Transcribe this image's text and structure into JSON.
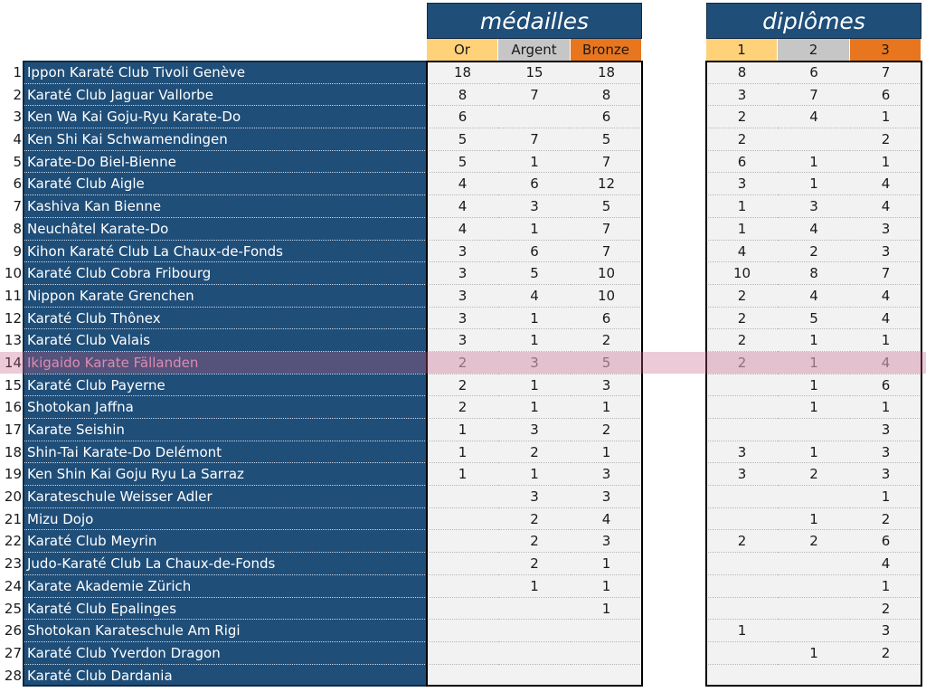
{
  "headers": {
    "medals_title": "médailles",
    "diplomas_title": "diplômes",
    "medal_cols": [
      "Or",
      "Argent",
      "Bronze"
    ],
    "diploma_cols": [
      "1",
      "2",
      "3"
    ]
  },
  "highlighted_rank": "14",
  "colors": {
    "navy": "#1f4e79",
    "gold": "#ffd27a",
    "silver": "#c6c6c6",
    "bronze": "#e8761e",
    "highlight": "#c85a82"
  },
  "rows": [
    {
      "rank": "1",
      "club": "Ippon Karaté Club Tivoli Genève",
      "or": "18",
      "argent": "15",
      "bronze": "18",
      "d1": "8",
      "d2": "6",
      "d3": "7"
    },
    {
      "rank": "2",
      "club": "Karaté Club Jaguar Vallorbe",
      "or": "8",
      "argent": "7",
      "bronze": "8",
      "d1": "3",
      "d2": "7",
      "d3": "6"
    },
    {
      "rank": "3",
      "club": "Ken Wa Kai Goju-Ryu Karate-Do",
      "or": "6",
      "argent": "",
      "bronze": "6",
      "d1": "2",
      "d2": "4",
      "d3": "1"
    },
    {
      "rank": "4",
      "club": "Ken Shi Kai Schwamendingen",
      "or": "5",
      "argent": "7",
      "bronze": "5",
      "d1": "2",
      "d2": "",
      "d3": "2"
    },
    {
      "rank": "5",
      "club": "Karate-Do Biel-Bienne",
      "or": "5",
      "argent": "1",
      "bronze": "7",
      "d1": "6",
      "d2": "1",
      "d3": "1"
    },
    {
      "rank": "6",
      "club": "Karaté Club Aigle",
      "or": "4",
      "argent": "6",
      "bronze": "12",
      "d1": "3",
      "d2": "1",
      "d3": "4"
    },
    {
      "rank": "7",
      "club": "Kashiva Kan Bienne",
      "or": "4",
      "argent": "3",
      "bronze": "5",
      "d1": "1",
      "d2": "3",
      "d3": "4"
    },
    {
      "rank": "8",
      "club": "Neuchâtel Karate-Do",
      "or": "4",
      "argent": "1",
      "bronze": "7",
      "d1": "1",
      "d2": "4",
      "d3": "3"
    },
    {
      "rank": "9",
      "club": "Kihon Karaté Club La Chaux-de-Fonds",
      "or": "3",
      "argent": "6",
      "bronze": "7",
      "d1": "4",
      "d2": "2",
      "d3": "3"
    },
    {
      "rank": "10",
      "club": "Karaté Club Cobra Fribourg",
      "or": "3",
      "argent": "5",
      "bronze": "10",
      "d1": "10",
      "d2": "8",
      "d3": "7"
    },
    {
      "rank": "11",
      "club": "Nippon Karate Grenchen",
      "or": "3",
      "argent": "4",
      "bronze": "10",
      "d1": "2",
      "d2": "4",
      "d3": "4"
    },
    {
      "rank": "12",
      "club": "Karaté Club Thônex",
      "or": "3",
      "argent": "1",
      "bronze": "6",
      "d1": "2",
      "d2": "5",
      "d3": "4"
    },
    {
      "rank": "13",
      "club": "Karaté Club Valais",
      "or": "3",
      "argent": "1",
      "bronze": "2",
      "d1": "2",
      "d2": "1",
      "d3": "1"
    },
    {
      "rank": "14",
      "club": "Ikigaido Karate Fällanden",
      "or": "2",
      "argent": "3",
      "bronze": "5",
      "d1": "2",
      "d2": "1",
      "d3": "4"
    },
    {
      "rank": "15",
      "club": "Karaté Club Payerne",
      "or": "2",
      "argent": "1",
      "bronze": "3",
      "d1": "",
      "d2": "1",
      "d3": "6"
    },
    {
      "rank": "16",
      "club": "Shotokan Jaffna",
      "or": "2",
      "argent": "1",
      "bronze": "1",
      "d1": "",
      "d2": "1",
      "d3": "1"
    },
    {
      "rank": "17",
      "club": "Karate Seishin",
      "or": "1",
      "argent": "3",
      "bronze": "2",
      "d1": "",
      "d2": "",
      "d3": "3"
    },
    {
      "rank": "18",
      "club": "Shin-Tai Karate-Do Delémont",
      "or": "1",
      "argent": "2",
      "bronze": "1",
      "d1": "3",
      "d2": "1",
      "d3": "3"
    },
    {
      "rank": "19",
      "club": "Ken Shin Kai Goju Ryu La Sarraz",
      "or": "1",
      "argent": "1",
      "bronze": "3",
      "d1": "3",
      "d2": "2",
      "d3": "3"
    },
    {
      "rank": "20",
      "club": "Karateschule Weisser Adler",
      "or": "",
      "argent": "3",
      "bronze": "3",
      "d1": "",
      "d2": "",
      "d3": "1"
    },
    {
      "rank": "21",
      "club": "Mizu Dojo",
      "or": "",
      "argent": "2",
      "bronze": "4",
      "d1": "",
      "d2": "1",
      "d3": "2"
    },
    {
      "rank": "22",
      "club": "Karaté Club Meyrin",
      "or": "",
      "argent": "2",
      "bronze": "3",
      "d1": "2",
      "d2": "2",
      "d3": "6"
    },
    {
      "rank": "23",
      "club": "Judo-Karaté Club La Chaux-de-Fonds",
      "or": "",
      "argent": "2",
      "bronze": "1",
      "d1": "",
      "d2": "",
      "d3": "4"
    },
    {
      "rank": "24",
      "club": "Karate Akademie Zürich",
      "or": "",
      "argent": "1",
      "bronze": "1",
      "d1": "",
      "d2": "",
      "d3": "1"
    },
    {
      "rank": "25",
      "club": "Karaté Club Epalinges",
      "or": "",
      "argent": "",
      "bronze": "1",
      "d1": "",
      "d2": "",
      "d3": "2"
    },
    {
      "rank": "26",
      "club": "Shotokan Karateschule Am Rigi",
      "or": "",
      "argent": "",
      "bronze": "",
      "d1": "1",
      "d2": "",
      "d3": "3"
    },
    {
      "rank": "27",
      "club": "Karaté Club Yverdon Dragon",
      "or": "",
      "argent": "",
      "bronze": "",
      "d1": "",
      "d2": "1",
      "d3": "2"
    },
    {
      "rank": "28",
      "club": "Karaté Club Dardania",
      "or": "",
      "argent": "",
      "bronze": "",
      "d1": "",
      "d2": "",
      "d3": ""
    }
  ]
}
